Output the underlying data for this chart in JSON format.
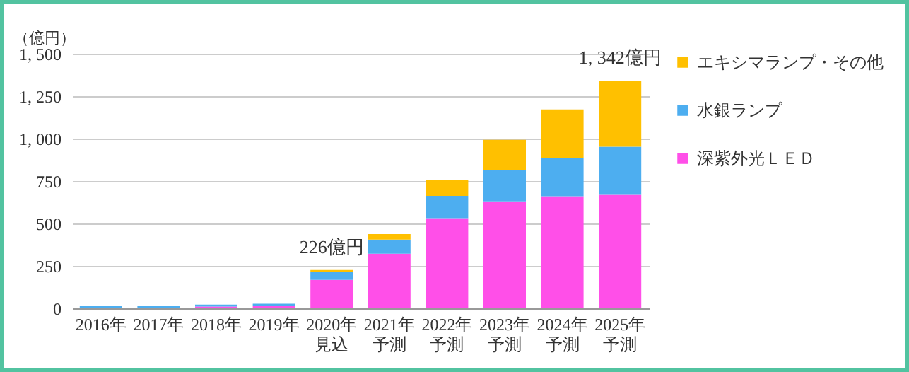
{
  "chart_data": {
    "type": "bar",
    "stacked": true,
    "ylabel": "（億円）",
    "categories": [
      "2016年",
      "2017年",
      "2018年",
      "2019年",
      "2020年見込",
      "2021年予測",
      "2022年予測",
      "2023年予測",
      "2024年予測",
      "2025年予測"
    ],
    "series": [
      {
        "name": "深紫外光ＬＥＤ",
        "color": "#ff4fe8",
        "values": [
          null,
          3,
          10,
          17,
          168,
          322,
          531,
          630,
          660,
          669
        ]
      },
      {
        "name": "水銀ランプ",
        "color": "#4daef0",
        "values": [
          12,
          13,
          12,
          10,
          48,
          83,
          132,
          182,
          223,
          283
        ]
      },
      {
        "name": "エキシマランプ・その他",
        "color": "#ffc000",
        "values": [
          0,
          0,
          0,
          0,
          10,
          33,
          94,
          181,
          289,
          390
        ]
      }
    ],
    "ylim": [
      0,
      1500
    ],
    "yticks": [
      0,
      250,
      500,
      750,
      {
        "value": 1000,
        "label": "1, 000"
      },
      {
        "value": 1250,
        "label": "1, 250"
      },
      {
        "value": 1500,
        "label": "1, 500"
      }
    ],
    "grid": "y",
    "legend": "right",
    "annotations": [
      {
        "text": "226億円",
        "x": "2020年見込",
        "y": 226
      },
      {
        "text": "1, 342億円",
        "x": "2025年予測",
        "y": 1342
      }
    ]
  }
}
